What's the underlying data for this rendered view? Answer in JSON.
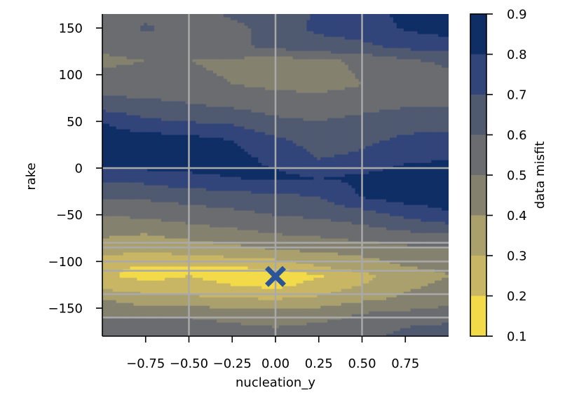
{
  "chart_data": {
    "type": "heatmap",
    "xlabel": "nucleation_y",
    "ylabel": "rake",
    "xlim": [
      -1.0,
      1.0
    ],
    "ylim": [
      -180,
      165
    ],
    "x_ticks": [
      -0.75,
      -0.5,
      -0.25,
      0.0,
      0.25,
      0.5,
      0.75
    ],
    "x_tick_labels": [
      "−0.75",
      "−0.50",
      "−0.25",
      "0.00",
      "0.25",
      "0.50",
      "0.75"
    ],
    "y_ticks": [
      150,
      100,
      50,
      0,
      -50,
      -100,
      -150
    ],
    "y_tick_labels": [
      "150",
      "100",
      "50",
      "0",
      "−50",
      "−100",
      "−150"
    ],
    "grid": true,
    "grid_x": [
      -0.5,
      0.0,
      0.5
    ],
    "grid_y": [
      0,
      -80,
      -85,
      -100,
      -110,
      -135,
      -160
    ],
    "colorbar": {
      "label": "data misfit",
      "levels": [
        0.1,
        0.2,
        0.3,
        0.4,
        0.5,
        0.6,
        0.7,
        0.8,
        0.9
      ],
      "tick_labels": [
        "0.1",
        "0.2",
        "0.3",
        "0.4",
        "0.5",
        "0.6",
        "0.7",
        "0.8",
        "0.9"
      ],
      "colors": [
        "#f2da48",
        "#c9b665",
        "#aaa06e",
        "#84826f",
        "#6a6c70",
        "#4f5970",
        "#32457a",
        "#0f2e66"
      ]
    },
    "marker": {
      "x": 0.0,
      "y": -116,
      "symbol": "X",
      "color": "#2b5597"
    },
    "x_samples": [
      -1.0,
      -0.75,
      -0.5,
      -0.25,
      0.0,
      0.25,
      0.5,
      0.75,
      1.0
    ],
    "contour_rows": [
      {
        "rake": 165,
        "misfit": [
          0.53,
          0.58,
          0.55,
          0.62,
          0.65,
          0.71,
          0.75,
          0.83,
          0.82
        ]
      },
      {
        "rake": 150,
        "misfit": [
          0.56,
          0.61,
          0.58,
          0.56,
          0.66,
          0.72,
          0.74,
          0.81,
          0.85
        ]
      },
      {
        "rake": 130,
        "misfit": [
          0.52,
          0.54,
          0.56,
          0.58,
          0.62,
          0.66,
          0.68,
          0.72,
          0.74
        ]
      },
      {
        "rake": 115,
        "misfit": [
          0.48,
          0.5,
          0.5,
          0.48,
          0.45,
          0.47,
          0.52,
          0.58,
          0.62
        ]
      },
      {
        "rake": 90,
        "misfit": [
          0.55,
          0.55,
          0.53,
          0.5,
          0.48,
          0.46,
          0.5,
          0.52,
          0.55
        ]
      },
      {
        "rake": 70,
        "misfit": [
          0.63,
          0.62,
          0.6,
          0.57,
          0.55,
          0.55,
          0.56,
          0.58,
          0.58
        ]
      },
      {
        "rake": 50,
        "misfit": [
          0.8,
          0.72,
          0.7,
          0.68,
          0.62,
          0.6,
          0.63,
          0.66,
          0.66
        ]
      },
      {
        "rake": 30,
        "misfit": [
          0.85,
          0.86,
          0.84,
          0.8,
          0.72,
          0.66,
          0.68,
          0.72,
          0.74
        ]
      },
      {
        "rake": 10,
        "misfit": [
          0.86,
          0.88,
          0.85,
          0.83,
          0.78,
          0.7,
          0.72,
          0.78,
          0.8
        ]
      },
      {
        "rake": -10,
        "misfit": [
          0.72,
          0.74,
          0.78,
          0.8,
          0.82,
          0.8,
          0.82,
          0.86,
          0.86
        ]
      },
      {
        "rake": -30,
        "misfit": [
          0.62,
          0.62,
          0.64,
          0.66,
          0.68,
          0.7,
          0.81,
          0.85,
          0.86
        ]
      },
      {
        "rake": -50,
        "misfit": [
          0.5,
          0.52,
          0.55,
          0.57,
          0.6,
          0.62,
          0.65,
          0.72,
          0.78
        ]
      },
      {
        "rake": -70,
        "misfit": [
          0.42,
          0.4,
          0.44,
          0.47,
          0.5,
          0.52,
          0.55,
          0.58,
          0.6
        ]
      },
      {
        "rake": -90,
        "misfit": [
          0.32,
          0.3,
          0.32,
          0.35,
          0.38,
          0.4,
          0.42,
          0.45,
          0.47
        ]
      },
      {
        "rake": -105,
        "misfit": [
          0.22,
          0.19,
          0.2,
          0.2,
          0.22,
          0.3,
          0.35,
          0.4,
          0.42
        ]
      },
      {
        "rake": -115,
        "misfit": [
          0.21,
          0.18,
          0.2,
          0.18,
          0.12,
          0.19,
          0.27,
          0.35,
          0.4
        ]
      },
      {
        "rake": -125,
        "misfit": [
          0.26,
          0.22,
          0.22,
          0.2,
          0.17,
          0.24,
          0.3,
          0.38,
          0.42
        ]
      },
      {
        "rake": -140,
        "misfit": [
          0.4,
          0.35,
          0.33,
          0.31,
          0.3,
          0.32,
          0.38,
          0.42,
          0.45
        ]
      },
      {
        "rake": -155,
        "misfit": [
          0.48,
          0.46,
          0.47,
          0.45,
          0.44,
          0.46,
          0.5,
          0.52,
          0.55
        ]
      },
      {
        "rake": -170,
        "misfit": [
          0.55,
          0.58,
          0.56,
          0.52,
          0.5,
          0.52,
          0.55,
          0.6,
          0.62
        ]
      },
      {
        "rake": -180,
        "misfit": [
          0.6,
          0.6,
          0.58,
          0.56,
          0.55,
          0.56,
          0.58,
          0.62,
          0.63
        ]
      }
    ]
  }
}
